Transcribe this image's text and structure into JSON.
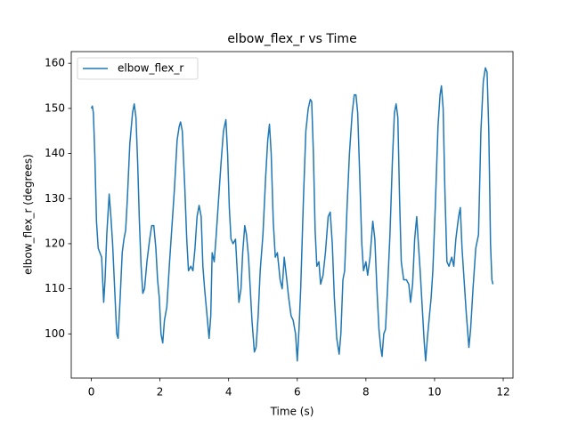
{
  "chart_data": {
    "type": "line",
    "title": "elbow_flex_r vs Time",
    "xlabel": "Time (s)",
    "ylabel": "elbow_flex_r (degrees)",
    "xlim": [
      -0.585,
      12.285
    ],
    "ylim": [
      90.2,
      162.6
    ],
    "xticks": [
      0,
      2,
      4,
      6,
      8,
      10,
      12
    ],
    "yticks": [
      100,
      110,
      120,
      130,
      140,
      150,
      160
    ],
    "legend": "upper left",
    "series": [
      {
        "name": "elbow_flex_r",
        "color": "#1f77b4",
        "x": [
          0,
          0.03,
          0.06,
          0.1,
          0.15,
          0.2,
          0.25,
          0.3,
          0.36,
          0.4,
          0.45,
          0.52,
          0.57,
          0.62,
          0.68,
          0.74,
          0.78,
          0.84,
          0.9,
          0.95,
          1.0,
          1.05,
          1.12,
          1.2,
          1.25,
          1.3,
          1.35,
          1.4,
          1.45,
          1.5,
          1.55,
          1.62,
          1.7,
          1.76,
          1.82,
          1.88,
          1.93,
          1.98,
          2.03,
          2.08,
          2.13,
          2.2,
          2.28,
          2.35,
          2.42,
          2.5,
          2.56,
          2.6,
          2.65,
          2.72,
          2.78,
          2.83,
          2.9,
          2.96,
          3.02,
          3.08,
          3.14,
          3.2,
          3.25,
          3.3,
          3.36,
          3.43,
          3.48,
          3.52,
          3.58,
          3.63,
          3.7,
          3.78,
          3.85,
          3.92,
          3.97,
          4.02,
          4.07,
          4.13,
          4.2,
          4.25,
          4.3,
          4.36,
          4.41,
          4.47,
          4.52,
          4.58,
          4.63,
          4.68,
          4.75,
          4.8,
          4.86,
          4.92,
          5.0,
          5.08,
          5.14,
          5.19,
          5.24,
          5.3,
          5.36,
          5.42,
          5.5,
          5.56,
          5.62,
          5.68,
          5.75,
          5.82,
          5.88,
          5.95,
          6.0,
          6.05,
          6.1,
          6.18,
          6.25,
          6.32,
          6.38,
          6.42,
          6.47,
          6.52,
          6.57,
          6.63,
          6.68,
          6.75,
          6.82,
          6.9,
          6.96,
          7.02,
          7.08,
          7.15,
          7.22,
          7.27,
          7.33,
          7.38,
          7.45,
          7.52,
          7.6,
          7.66,
          7.71,
          7.76,
          7.82,
          7.88,
          7.93,
          8.0,
          8.05,
          8.12,
          8.2,
          8.26,
          8.32,
          8.38,
          8.43,
          8.47,
          8.52,
          8.57,
          8.63,
          8.7,
          8.77,
          8.83,
          8.88,
          8.93,
          8.98,
          9.03,
          9.1,
          9.18,
          9.25,
          9.3,
          9.36,
          9.42,
          9.48,
          9.52,
          9.58,
          9.64,
          9.7,
          9.74,
          9.79,
          9.85,
          9.9,
          9.95,
          10.02,
          10.1,
          10.16,
          10.2,
          10.25,
          10.3,
          10.36,
          10.42,
          10.5,
          10.56,
          10.62,
          10.7,
          10.75,
          10.8,
          10.86,
          10.92,
          11.0,
          11.05,
          11.12,
          11.2,
          11.28,
          11.35,
          11.42,
          11.48,
          11.53,
          11.58,
          11.63,
          11.67,
          11.7
        ],
        "values": [
          150,
          150.5,
          149,
          140,
          125,
          119,
          118,
          117,
          107,
          112,
          122,
          131,
          126,
          120,
          110,
          100,
          99,
          108,
          118,
          121,
          123,
          130,
          142,
          149,
          151,
          148,
          138,
          125,
          115,
          109,
          110,
          116,
          121,
          124,
          124,
          119,
          112,
          108,
          100,
          98,
          103,
          106,
          116,
          124,
          132,
          143,
          146,
          147,
          145,
          133,
          121,
          114,
          115,
          114,
          119,
          126,
          128.5,
          126,
          115,
          110,
          105,
          99,
          104,
          118,
          116,
          121,
          129,
          138,
          145,
          147.5,
          140,
          128,
          121,
          120,
          121,
          114,
          107,
          110,
          118,
          124,
          122,
          117,
          110,
          103,
          96,
          97,
          104,
          114,
          122,
          135,
          143,
          146.5,
          140,
          125,
          117,
          118,
          112,
          110,
          117,
          113,
          108,
          104,
          103,
          100,
          94,
          101,
          110,
          130,
          145,
          150,
          152,
          151.5,
          140,
          123,
          115,
          116,
          111,
          113,
          118,
          126,
          127,
          120,
          108,
          99,
          95.5,
          100,
          112,
          114,
          128,
          140,
          149,
          153,
          153,
          149,
          135,
          120,
          114,
          116,
          113,
          117,
          125,
          121,
          110,
          101,
          97,
          95,
          100,
          101,
          110,
          122,
          138,
          149,
          151,
          148,
          130,
          116,
          112,
          112,
          111,
          107,
          111,
          121,
          126,
          121,
          114,
          106,
          98,
          94,
          99,
          104,
          108,
          114,
          128,
          146,
          153,
          155,
          150,
          132,
          116,
          115,
          117,
          115,
          121,
          126,
          128,
          119,
          112,
          105,
          97,
          101,
          110,
          119,
          122,
          145,
          156,
          159,
          158,
          145,
          120,
          112,
          111
        ]
      }
    ]
  }
}
